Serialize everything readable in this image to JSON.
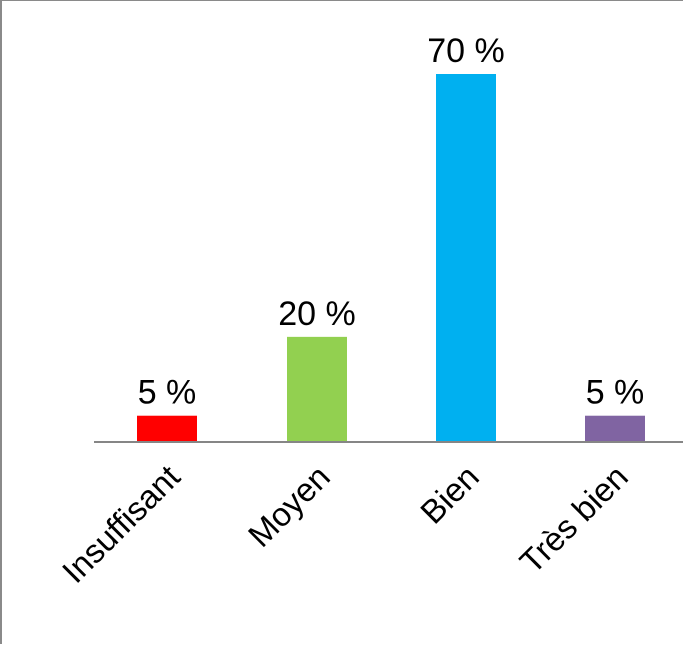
{
  "chart_data": {
    "type": "bar",
    "categories": [
      "Insuffisant",
      "Moyen",
      "Bien",
      "Très bien"
    ],
    "values": [
      5,
      20,
      70,
      5
    ],
    "data_labels": [
      "5 %",
      "20 %",
      "70 %",
      "5 %"
    ],
    "colors": [
      "#ff0000",
      "#92d050",
      "#00b0f0",
      "#8064a2"
    ],
    "title": "",
    "xlabel": "",
    "ylabel": "",
    "ylim": [
      0,
      70
    ],
    "grid": false,
    "legend": "none"
  }
}
